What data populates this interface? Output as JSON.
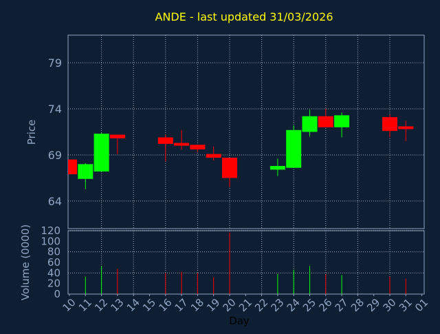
{
  "chart_data": {
    "type": "candlestick",
    "title": "ANDE - last updated 31/03/2026",
    "xlabel": "Day",
    "colors": {
      "background": "#0f1f33",
      "title": "#ffff00",
      "axis_text": "#8fa6c4",
      "frame": "#8fa6c4",
      "grid": "#d8dde6",
      "up": "#00ff00",
      "down": "#ff0000"
    },
    "price_panel": {
      "ylabel": "Price",
      "ylim": [
        61,
        82
      ],
      "yticks": [
        64,
        69,
        74,
        79
      ]
    },
    "volume_panel": {
      "ylabel": "Volume (0000)",
      "ylim": [
        0,
        120
      ],
      "yticks": [
        0,
        20,
        40,
        60,
        80,
        100,
        120
      ],
      "grid_y": [
        40,
        80,
        120
      ]
    },
    "x_ticks": [
      "10",
      "11",
      "12",
      "13",
      "14",
      "15",
      "16",
      "17",
      "18",
      "19",
      "20",
      "21",
      "22",
      "23",
      "24",
      "25",
      "26",
      "27",
      "28",
      "29",
      "30",
      "31",
      "01"
    ],
    "x_gridlines": [
      "12",
      "14",
      "16",
      "18",
      "20",
      "22",
      "24",
      "26",
      "28",
      "30"
    ],
    "candles": [
      {
        "day": "10",
        "open": 68.5,
        "high": 68.5,
        "low": 66.9,
        "close": 66.9,
        "volume": 0
      },
      {
        "day": "11",
        "open": 66.4,
        "high": 68.1,
        "low": 65.3,
        "close": 68.0,
        "volume": 33
      },
      {
        "day": "12",
        "open": 67.2,
        "high": 71.4,
        "low": 67.2,
        "close": 71.3,
        "volume": 53
      },
      {
        "day": "13",
        "open": 71.2,
        "high": 71.2,
        "low": 69.1,
        "close": 70.8,
        "volume": 48
      },
      {
        "day": "16",
        "open": 70.9,
        "high": 71.2,
        "low": 68.3,
        "close": 70.2,
        "volume": 40
      },
      {
        "day": "17",
        "open": 70.3,
        "high": 71.7,
        "low": 69.6,
        "close": 70.0,
        "volume": 42
      },
      {
        "day": "18",
        "open": 70.1,
        "high": 70.1,
        "low": 69.3,
        "close": 69.6,
        "volume": 40
      },
      {
        "day": "19",
        "open": 69.1,
        "high": 69.9,
        "low": 68.4,
        "close": 68.7,
        "volume": 32
      },
      {
        "day": "20",
        "open": 68.7,
        "high": 68.7,
        "low": 65.5,
        "close": 66.5,
        "volume": 117
      },
      {
        "day": "23",
        "open": 67.4,
        "high": 68.6,
        "low": 66.7,
        "close": 67.8,
        "volume": 38
      },
      {
        "day": "24",
        "open": 67.6,
        "high": 72.2,
        "low": 67.6,
        "close": 71.7,
        "volume": 46
      },
      {
        "day": "25",
        "open": 71.5,
        "high": 73.9,
        "low": 71.0,
        "close": 73.2,
        "volume": 53
      },
      {
        "day": "26",
        "open": 73.2,
        "high": 74.0,
        "low": 72.0,
        "close": 72.0,
        "volume": 37
      },
      {
        "day": "27",
        "open": 72.0,
        "high": 73.6,
        "low": 70.9,
        "close": 73.3,
        "volume": 36
      },
      {
        "day": "30",
        "open": 73.1,
        "high": 73.4,
        "low": 70.9,
        "close": 71.6,
        "volume": 33
      },
      {
        "day": "31",
        "open": 72.1,
        "high": 72.7,
        "low": 70.5,
        "close": 71.8,
        "volume": 29
      }
    ]
  }
}
